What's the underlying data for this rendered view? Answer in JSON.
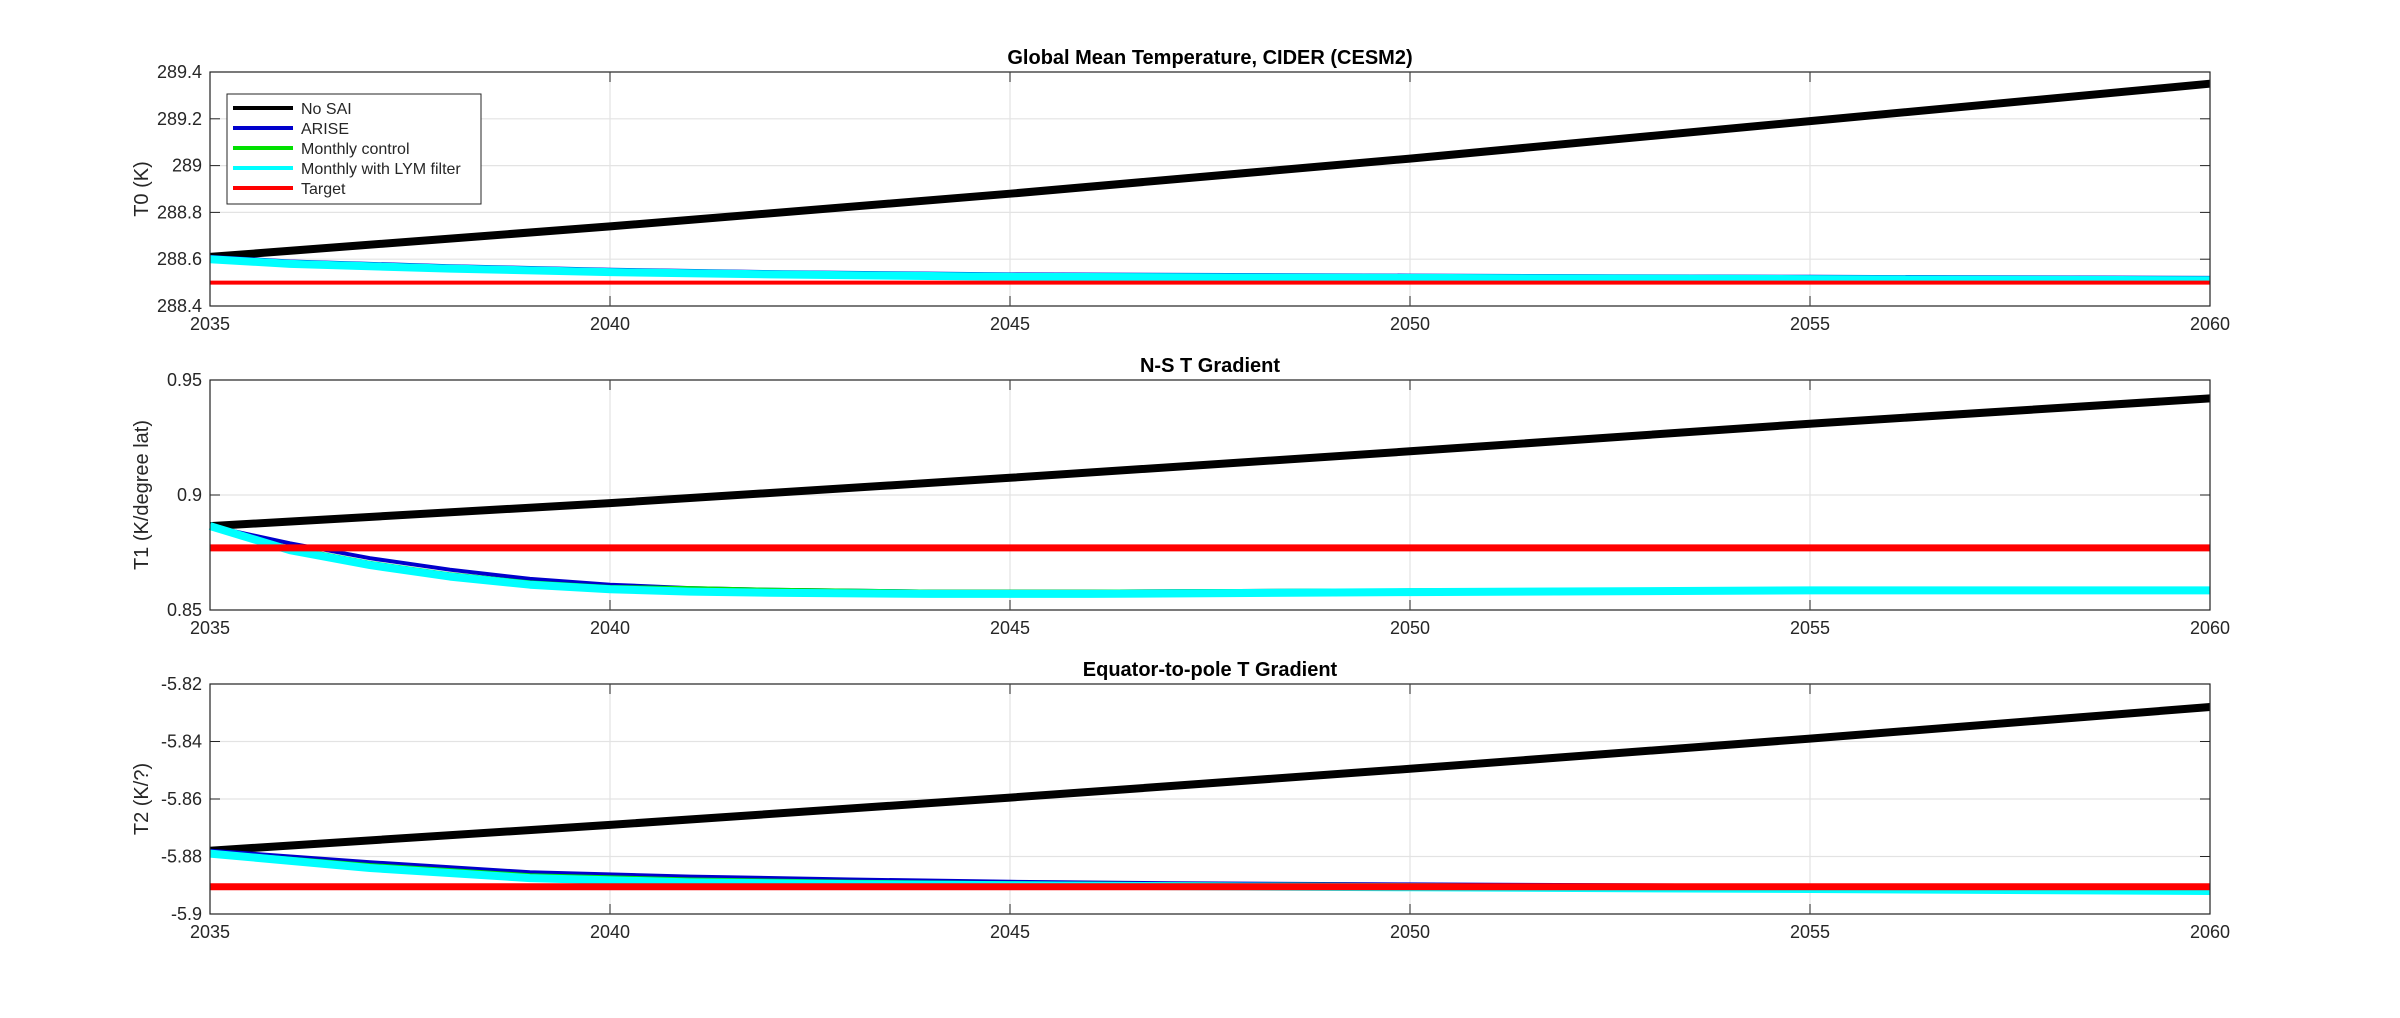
{
  "chart_data": [
    {
      "type": "line",
      "title": "Global Mean Temperature, CIDER (CESM2)",
      "xlabel": "",
      "ylabel": "T0 (K)",
      "xlim": [
        2035,
        2060
      ],
      "ylim": [
        288.4,
        289.4
      ],
      "xticks": [
        "2035",
        "2040",
        "2045",
        "2050",
        "2055",
        "2060"
      ],
      "yticks": [
        "288.4",
        "288.6",
        "288.8",
        "289",
        "289.2",
        "289.4"
      ],
      "grid": true,
      "legend": {
        "placement": "top-left",
        "entries": [
          "No SAI",
          "ARISE",
          "Monthly control",
          "Monthly with LYM filter",
          "Target"
        ]
      },
      "series": [
        {
          "name": "No SAI",
          "color": "#000000",
          "x": [
            2035,
            2040,
            2045,
            2050,
            2055,
            2060
          ],
          "values": [
            288.61,
            288.74,
            288.88,
            289.03,
            289.19,
            289.35
          ]
        },
        {
          "name": "ARISE",
          "color": "#0000cc",
          "x": [
            2035,
            2036,
            2038,
            2040,
            2042,
            2045,
            2050,
            2055,
            2060
          ],
          "values": [
            288.61,
            288.59,
            288.57,
            288.555,
            288.545,
            288.535,
            288.53,
            288.525,
            288.52
          ]
        },
        {
          "name": "Monthly control",
          "color": "#00e000",
          "x": [
            2035,
            2036,
            2038,
            2040,
            2042,
            2045,
            2050,
            2055,
            2060
          ],
          "values": [
            288.605,
            288.585,
            288.565,
            288.55,
            288.54,
            288.53,
            288.525,
            288.52,
            288.515
          ]
        },
        {
          "name": "Monthly with LYM filter",
          "color": "#00ffff",
          "x": [
            2035,
            2036,
            2038,
            2040,
            2042,
            2045,
            2050,
            2055,
            2060
          ],
          "values": [
            288.6,
            288.58,
            288.56,
            288.545,
            288.535,
            288.525,
            288.52,
            288.515,
            288.51
          ]
        },
        {
          "name": "Target",
          "color": "#ff0000",
          "x": [
            2035,
            2060
          ],
          "values": [
            288.5,
            288.5
          ]
        }
      ]
    },
    {
      "type": "line",
      "title": "N-S T Gradient",
      "xlabel": "",
      "ylabel": "T1 (K/degree lat)",
      "xlim": [
        2035,
        2060
      ],
      "ylim": [
        0.85,
        0.95
      ],
      "xticks": [
        "2035",
        "2040",
        "2045",
        "2050",
        "2055",
        "2060"
      ],
      "yticks": [
        "0.85",
        "0.9",
        "0.95"
      ],
      "grid": true,
      "series": [
        {
          "name": "No SAI",
          "color": "#000000",
          "x": [
            2035,
            2040,
            2045,
            2050,
            2055,
            2060
          ],
          "values": [
            0.8865,
            0.8965,
            0.9075,
            0.919,
            0.931,
            0.942
          ]
        },
        {
          "name": "ARISE",
          "color": "#0000cc",
          "x": [
            2035,
            2036,
            2037,
            2038,
            2039,
            2040,
            2041,
            2042,
            2044,
            2046,
            2050,
            2055,
            2060
          ],
          "values": [
            0.8865,
            0.879,
            0.8725,
            0.8675,
            0.8635,
            0.861,
            0.8595,
            0.8588,
            0.858,
            0.858,
            0.8585,
            0.859,
            0.859
          ]
        },
        {
          "name": "Monthly control",
          "color": "#00e000",
          "x": [
            2035,
            2036,
            2037,
            2038,
            2039,
            2040,
            2041,
            2042,
            2044,
            2046,
            2050,
            2055,
            2060
          ],
          "values": [
            0.8865,
            0.877,
            0.8705,
            0.8655,
            0.862,
            0.86,
            0.8595,
            0.8588,
            0.858,
            0.858,
            0.8585,
            0.859,
            0.859
          ]
        },
        {
          "name": "Monthly with LYM filter",
          "color": "#00ffff",
          "x": [
            2035,
            2036,
            2037,
            2038,
            2039,
            2040,
            2041,
            2042,
            2044,
            2046,
            2050,
            2055,
            2060
          ],
          "values": [
            0.8865,
            0.876,
            0.8695,
            0.8645,
            0.861,
            0.859,
            0.858,
            0.8575,
            0.857,
            0.857,
            0.8578,
            0.8585,
            0.8585
          ]
        },
        {
          "name": "Target",
          "color": "#ff0000",
          "x": [
            2035,
            2060
          ],
          "values": [
            0.877,
            0.877
          ]
        }
      ]
    },
    {
      "type": "line",
      "title": "Equator-to-pole T Gradient",
      "xlabel": "",
      "ylabel": "T2 (K/?)",
      "xlim": [
        2035,
        2060
      ],
      "ylim": [
        -5.9,
        -5.82
      ],
      "xticks": [
        "2035",
        "2040",
        "2045",
        "2050",
        "2055",
        "2060"
      ],
      "yticks": [
        "-5.9",
        "-5.88",
        "-5.86",
        "-5.84",
        "-5.82"
      ],
      "grid": true,
      "series": [
        {
          "name": "No SAI",
          "color": "#000000",
          "x": [
            2035,
            2040,
            2045,
            2050,
            2055,
            2060
          ],
          "values": [
            -5.878,
            -5.869,
            -5.8595,
            -5.8495,
            -5.839,
            -5.828
          ]
        },
        {
          "name": "ARISE",
          "color": "#0000cc",
          "x": [
            2035,
            2037,
            2039,
            2041,
            2043,
            2045,
            2047,
            2050,
            2055,
            2060
          ],
          "values": [
            -5.878,
            -5.882,
            -5.8855,
            -5.887,
            -5.888,
            -5.8888,
            -5.8893,
            -5.8897,
            -5.8903,
            -5.8908
          ]
        },
        {
          "name": "Monthly control",
          "color": "#00e000",
          "x": [
            2035,
            2037,
            2039,
            2041,
            2043,
            2045,
            2047,
            2050,
            2055,
            2060
          ],
          "values": [
            -5.8785,
            -5.883,
            -5.8865,
            -5.888,
            -5.8888,
            -5.8893,
            -5.8896,
            -5.89,
            -5.8906,
            -5.8912
          ]
        },
        {
          "name": "Monthly with LYM filter",
          "color": "#00ffff",
          "x": [
            2035,
            2037,
            2039,
            2041,
            2043,
            2045,
            2047,
            2050,
            2055,
            2060
          ],
          "values": [
            -5.879,
            -5.884,
            -5.8875,
            -5.889,
            -5.8896,
            -5.89,
            -5.8903,
            -5.8907,
            -5.8913,
            -5.892
          ]
        },
        {
          "name": "Target",
          "color": "#ff0000",
          "x": [
            2035,
            2060
          ],
          "values": [
            -5.8905,
            -5.8905
          ]
        }
      ]
    }
  ]
}
